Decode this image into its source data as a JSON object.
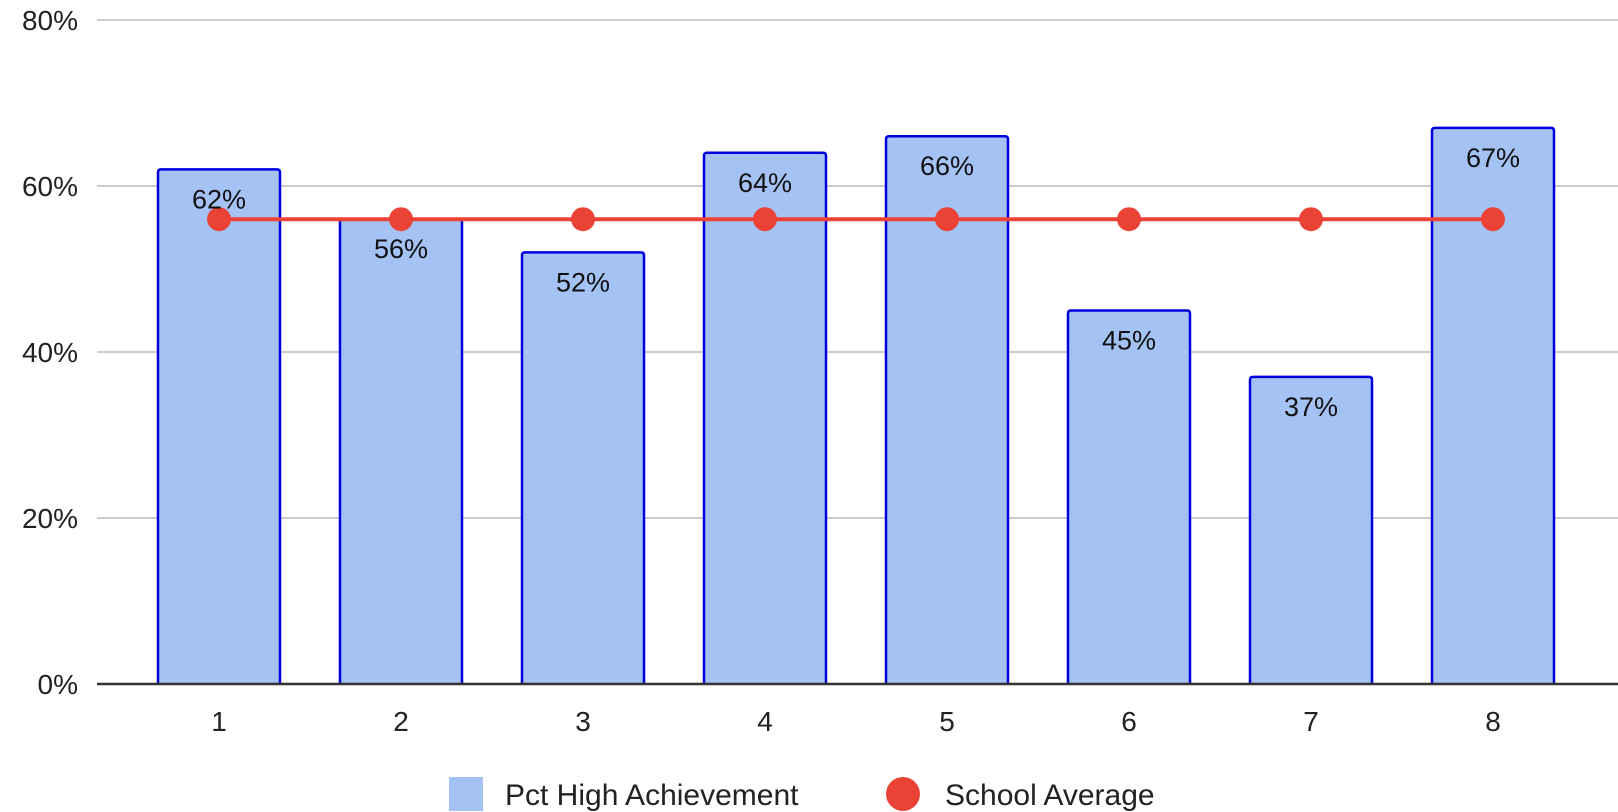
{
  "chart_data": {
    "type": "bar",
    "title": "",
    "xlabel": "",
    "ylabel": "",
    "categories": [
      "1",
      "2",
      "3",
      "4",
      "5",
      "6",
      "7",
      "8"
    ],
    "ylim": [
      0,
      80
    ],
    "yticks": [
      0,
      20,
      40,
      60,
      80
    ],
    "ytick_labels": [
      "0%",
      "20%",
      "40%",
      "60%",
      "80%"
    ],
    "grid": true,
    "legend_position": "bottom",
    "series": [
      {
        "name": "Pct High Achievement",
        "type": "bar",
        "values": [
          62,
          56,
          52,
          64,
          66,
          45,
          37,
          67
        ],
        "data_labels": [
          "62%",
          "56%",
          "52%",
          "64%",
          "66%",
          "45%",
          "37%",
          "67%"
        ],
        "fill_color": "#a4c2f4",
        "stroke_color": "#0000e0"
      },
      {
        "name": "School Average",
        "type": "line",
        "values": [
          56,
          56,
          56,
          56,
          56,
          56,
          56,
          56
        ],
        "color": "#ea4335"
      }
    ]
  }
}
